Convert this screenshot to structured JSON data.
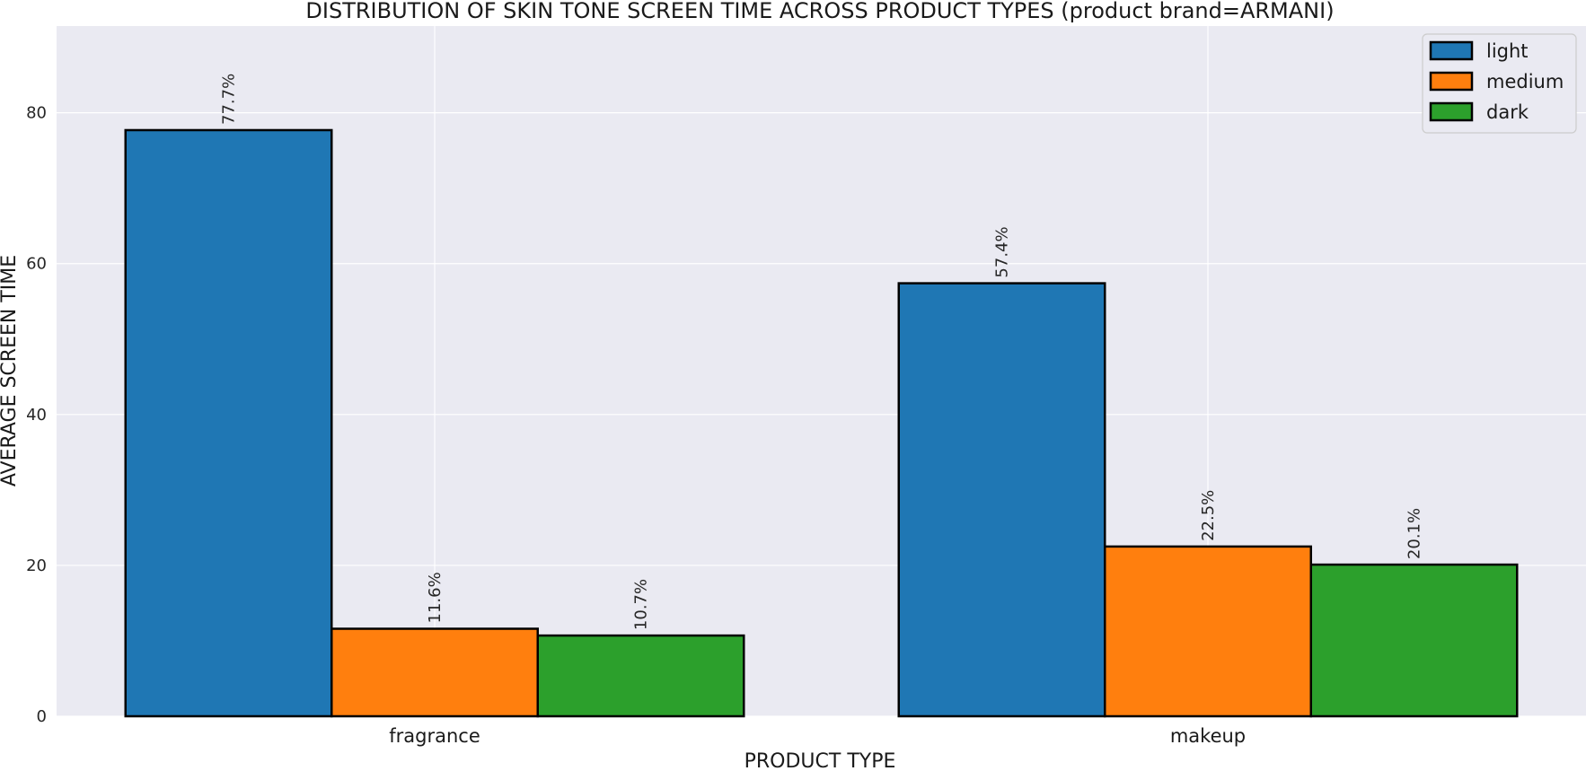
{
  "chart_data": {
    "type": "bar",
    "title": "DISTRIBUTION OF SKIN TONE SCREEN TIME ACROSS PRODUCT TYPES (product brand=ARMANI)",
    "xlabel": "PRODUCT TYPE",
    "ylabel": "AVERAGE SCREEN TIME",
    "categories": [
      "fragrance",
      "makeup"
    ],
    "series": [
      {
        "name": "light",
        "values": [
          77.7,
          57.4
        ],
        "labels": [
          "77.7%",
          "57.4%"
        ],
        "color": "#1f77b4"
      },
      {
        "name": "medium",
        "values": [
          11.6,
          22.5
        ],
        "labels": [
          "11.6%",
          "22.5%"
        ],
        "color": "#ff7f0e"
      },
      {
        "name": "dark",
        "values": [
          10.7,
          20.1
        ],
        "labels": [
          "10.7%",
          "20.1%"
        ],
        "color": "#2ca02c"
      }
    ],
    "ylim": [
      0,
      91.5
    ],
    "yticks": [
      "0",
      "20",
      "40",
      "60",
      "80"
    ],
    "grid": true,
    "legend_position": "top-right",
    "background": "#eaeaf2"
  }
}
